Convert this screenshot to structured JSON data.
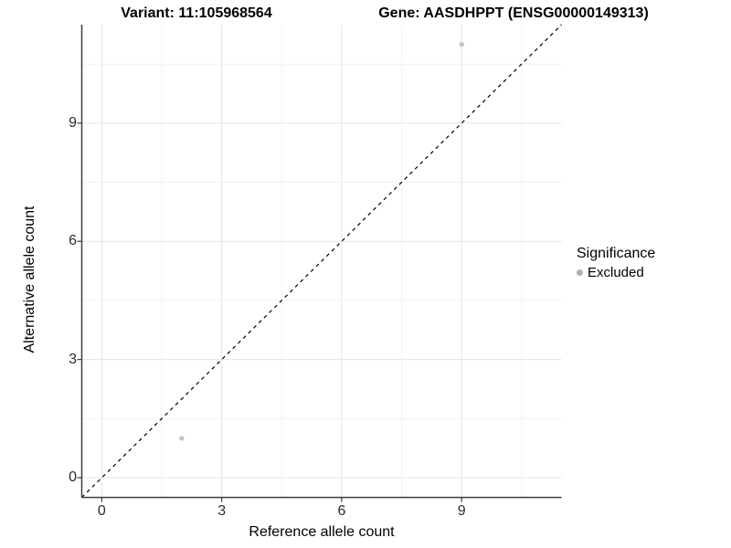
{
  "titles": {
    "variant": "Variant: 11:105968564",
    "gene": "Gene: AASDHPPT (ENSG00000149313)"
  },
  "axes": {
    "x_label": "Reference allele count",
    "y_label": "Alternative allele count"
  },
  "legend": {
    "title": "Significance",
    "items": [
      {
        "label": "Excluded",
        "color": "#b0b0b0"
      }
    ]
  },
  "chart_data": {
    "type": "scatter",
    "title": "Variant: 11:105968564 — Gene: AASDHPPT (ENSG00000149313)",
    "xlabel": "Reference allele count",
    "ylabel": "Alternative allele count",
    "xlim": [
      -0.5,
      11.5
    ],
    "ylim": [
      -0.5,
      11.5
    ],
    "x_ticks": [
      0,
      3,
      6,
      9
    ],
    "y_ticks": [
      0,
      3,
      6,
      9
    ],
    "x_minor_ticks": [
      1.5,
      4.5,
      7.5,
      10.5
    ],
    "y_minor_ticks": [
      1.5,
      4.5,
      7.5,
      10.5
    ],
    "grid": true,
    "legend_position": "right",
    "series": [
      {
        "name": "Excluded",
        "color": "#c2c2c2",
        "points": [
          {
            "x": 2,
            "y": 1
          },
          {
            "x": 9,
            "y": 11
          }
        ]
      }
    ],
    "identity_line": {
      "style": "dashed",
      "from": [
        -0.5,
        -0.5
      ],
      "to": [
        11.5,
        11.5
      ],
      "color": "#000000"
    }
  }
}
